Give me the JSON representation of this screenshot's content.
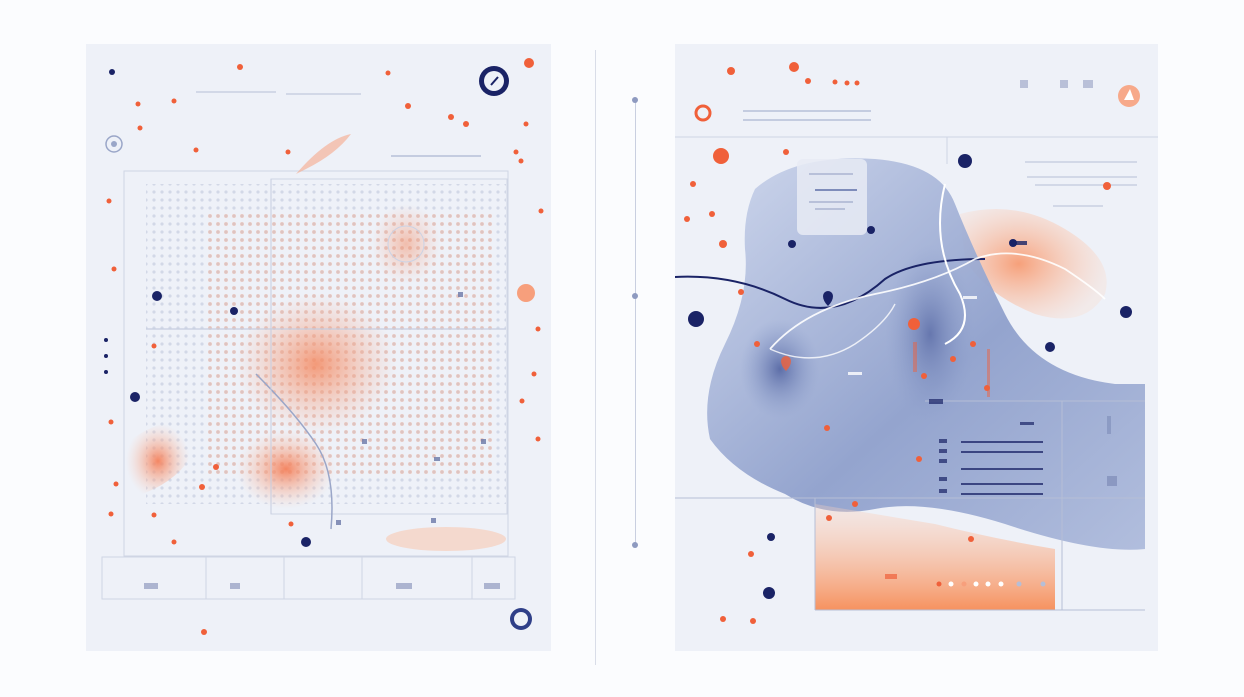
{
  "colors": {
    "background": "#fbfcfe",
    "panel": "#eef1f8",
    "accent_orange": "#f0603a",
    "peach": "#f8a98a",
    "navy": "#1a2366",
    "map_blue": "#a9b6d6",
    "line_gray": "#c9cfe0"
  },
  "icons": {
    "compass": "compass-icon",
    "location_pin": "location-pin-icon",
    "ring_marker": "ring-marker-icon"
  }
}
